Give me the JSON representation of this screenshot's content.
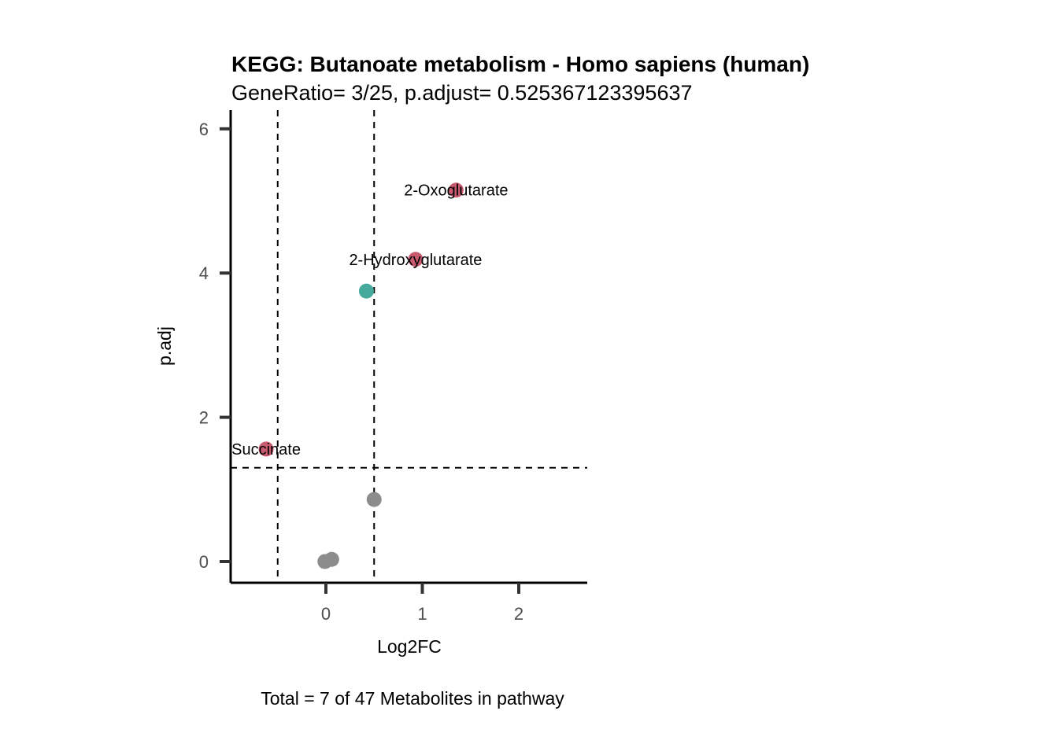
{
  "chart_data": {
    "type": "scatter",
    "title": "KEGG: Butanoate metabolism - Homo sapiens (human)",
    "subtitle": "GeneRatio= 3/25, p.adjust= 0.525367123395637",
    "xlabel": "Log2FC",
    "ylabel": "p.adj",
    "caption": "Total = 7 of 47 Metabolites in pathway",
    "xlim": [
      -0.98,
      2.7
    ],
    "ylim": [
      -0.3,
      6.2
    ],
    "xticks": [
      0,
      1,
      2
    ],
    "yticks": [
      0,
      2,
      4,
      6
    ],
    "thresholds": {
      "x": [
        -0.5,
        0.5
      ],
      "y": 1.3
    },
    "colors": {
      "up": "#c85a6f",
      "down": "#45a99b",
      "ns": "#8c8c8c"
    },
    "points": [
      {
        "x": 1.35,
        "y": 5.15,
        "group": "up",
        "label": "2-Oxoglutarate"
      },
      {
        "x": 0.93,
        "y": 4.19,
        "group": "up",
        "label": "2-Hydroxyglutarate"
      },
      {
        "x": 0.42,
        "y": 3.75,
        "group": "down",
        "label": ""
      },
      {
        "x": -0.62,
        "y": 1.56,
        "group": "up",
        "label": "Succinate"
      },
      {
        "x": 0.5,
        "y": 0.86,
        "group": "ns",
        "label": ""
      },
      {
        "x": 0.06,
        "y": 0.03,
        "group": "ns",
        "label": ""
      },
      {
        "x": -0.01,
        "y": 0.0,
        "group": "ns",
        "label": ""
      }
    ]
  }
}
